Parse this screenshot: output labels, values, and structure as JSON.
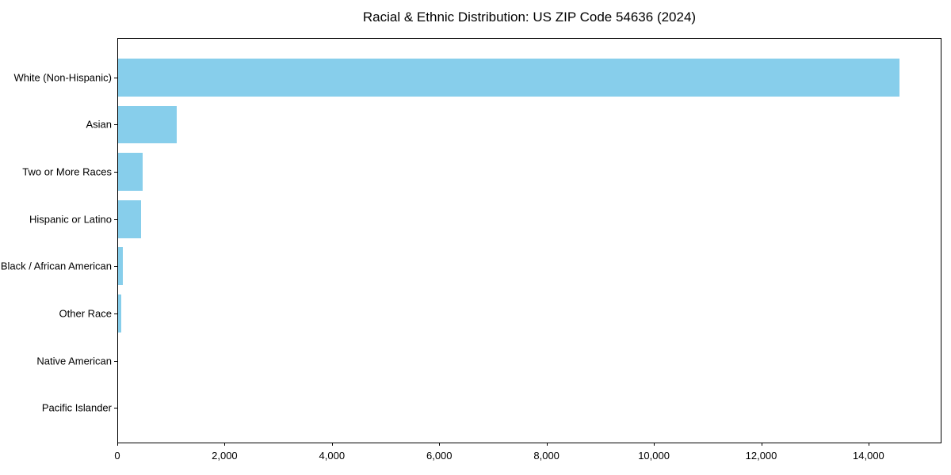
{
  "chart_data": {
    "type": "bar",
    "orientation": "horizontal",
    "title": "Racial & Ethnic Distribution: US ZIP Code 54636 (2024)",
    "categories": [
      "White (Non-Hispanic)",
      "Asian",
      "Two or More Races",
      "Hispanic or Latino",
      "Black / African American",
      "Other Race",
      "Native American",
      "Pacific Islander"
    ],
    "values": [
      14590,
      1100,
      465,
      430,
      90,
      60,
      0,
      0
    ],
    "xlabel": "",
    "ylabel": "",
    "xlim": [
      0,
      15360
    ],
    "x_ticks": [
      0,
      2000,
      4000,
      6000,
      8000,
      10000,
      12000,
      14000
    ],
    "x_tick_labels": [
      "0",
      "2,000",
      "4,000",
      "6,000",
      "8,000",
      "10,000",
      "12,000",
      "14,000"
    ],
    "bar_color": "#87CEEB",
    "spine_color": "#000000",
    "background_color": "#ffffff",
    "grid": false,
    "legend": null
  }
}
